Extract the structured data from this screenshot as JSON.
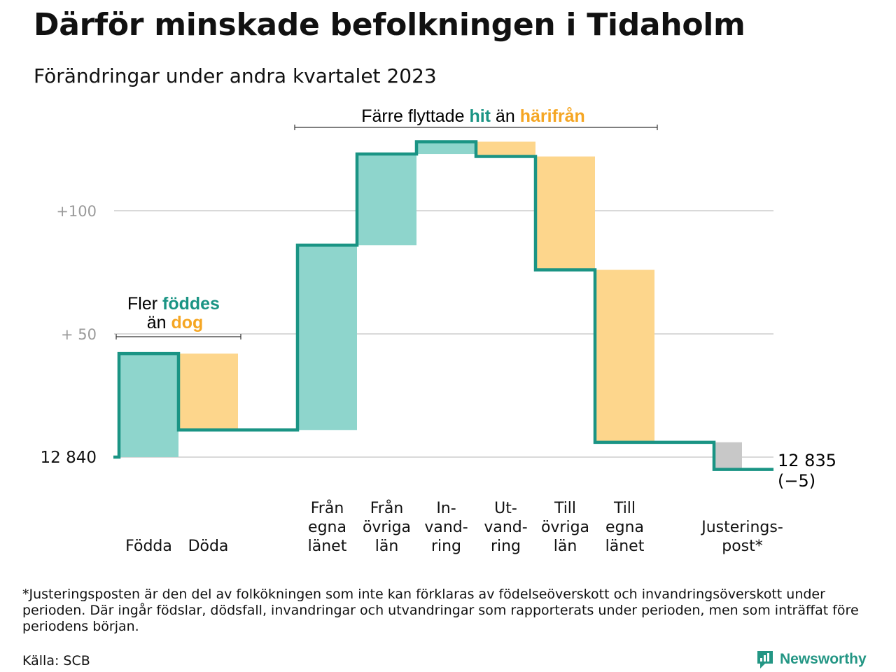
{
  "header": {
    "title": "Därför minskade befolkningen i Tidaholm",
    "subtitle": "Förändringar under andra kvartalet 2023"
  },
  "colors": {
    "inflow": "#8ed5cc",
    "outflow": "#fdd68c",
    "adjustment": "#c8c8c8",
    "line": "#1a9484",
    "accent_in": "#1a9484",
    "accent_out": "#f5a623",
    "grid": "#d9d9d9"
  },
  "chart_data": {
    "type": "waterfall",
    "start_value": 12840,
    "end_value": 12835,
    "end_label": "12 835",
    "end_change_label": "(−5)",
    "y_tick_labels": [
      {
        "value": 12840,
        "label": "12  840"
      },
      {
        "value": 12890,
        "label": "+  50"
      },
      {
        "value": 12940,
        "label": "+100"
      }
    ],
    "ylim": [
      12840,
      12970
    ],
    "steps": [
      {
        "label_lines": [
          "Födda"
        ],
        "delta": 42,
        "kind": "in"
      },
      {
        "label_lines": [
          "Döda"
        ],
        "delta": -31,
        "kind": "out"
      },
      {
        "label_lines": [
          ""
        ],
        "delta": 0,
        "kind": "gap"
      },
      {
        "label_lines": [
          "Från",
          "egna",
          "länet"
        ],
        "delta": 75,
        "kind": "in"
      },
      {
        "label_lines": [
          "Från",
          "övriga",
          "län"
        ],
        "delta": 37,
        "kind": "in"
      },
      {
        "label_lines": [
          "In-",
          "vand-",
          "ring"
        ],
        "delta": 5,
        "kind": "in"
      },
      {
        "label_lines": [
          "Ut-",
          "vand-",
          "ring"
        ],
        "delta": -6,
        "kind": "out"
      },
      {
        "label_lines": [
          "Till",
          "övriga",
          "län"
        ],
        "delta": -46,
        "kind": "out"
      },
      {
        "label_lines": [
          "Till",
          "egna",
          "länet"
        ],
        "delta": -70,
        "kind": "out"
      },
      {
        "label_lines": [
          ""
        ],
        "delta": 0,
        "kind": "gap"
      },
      {
        "label_lines": [
          "Justerings-",
          "post*"
        ],
        "delta": -11,
        "kind": "adj"
      }
    ],
    "annotations": {
      "birth": {
        "line1_prefix": "Fler ",
        "line1_highlight": "föddes",
        "line2_prefix": "än ",
        "line2_highlight": "dog"
      },
      "migration": {
        "prefix": "Färre flyttade ",
        "highlight_in": "hit",
        "middle": " än ",
        "highlight_out": "härifrån"
      }
    }
  },
  "footer": {
    "footnote": "*Justeringsposten är den del av folkökningen som inte kan förklaras av födelseöverskott och invandringsöverskott under perioden. Där ingår födslar, dödsfall, invandringar och utvandringar som rapporterats under perioden, men som inträffat före periodens början.",
    "source": "Källa: SCB",
    "brand": "Newsworthy"
  }
}
